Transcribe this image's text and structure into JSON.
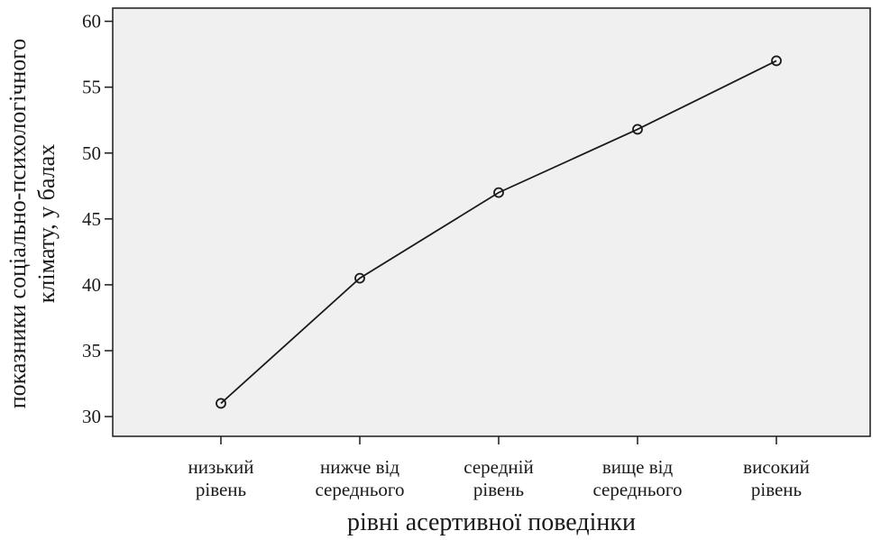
{
  "chart_data": {
    "type": "line",
    "categories": [
      [
        "низький",
        "рівень"
      ],
      [
        "нижче від",
        "середнього"
      ],
      [
        "середній",
        "рівень"
      ],
      [
        "вище від",
        "середнього"
      ],
      [
        "високий",
        "рівень"
      ]
    ],
    "series": [
      {
        "values": [
          31.0,
          40.5,
          47.0,
          51.8,
          57.0
        ]
      }
    ],
    "xlabel": "рівні асертивної поведінки",
    "ylabel": [
      "показники соціально-психологічного",
      "клімату, у балах"
    ],
    "ylim": [
      28.5,
      61
    ],
    "yticks": [
      30,
      35,
      40,
      45,
      50,
      55,
      60
    ],
    "grid": false,
    "plot_background": "#f0f0f0",
    "line_color": "#1a1a1a",
    "marker": "open-circle"
  }
}
